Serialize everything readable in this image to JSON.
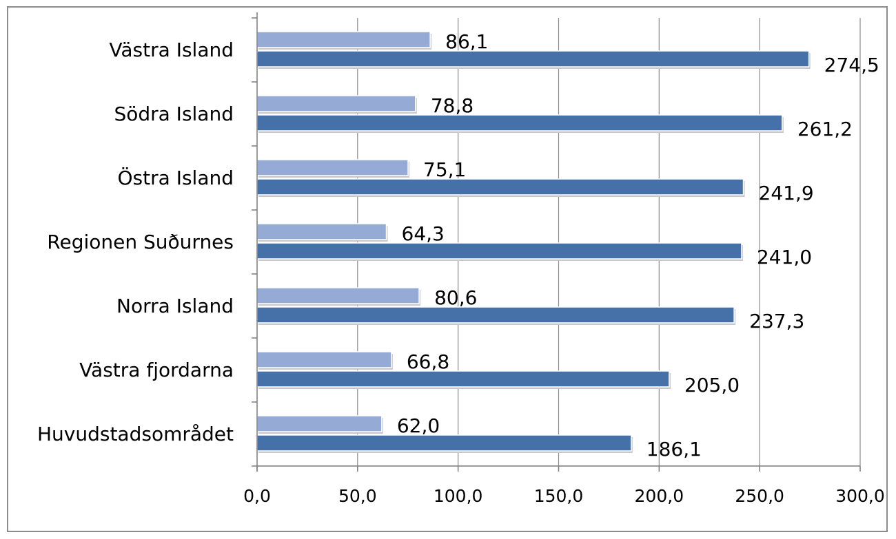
{
  "chart_data": {
    "type": "bar",
    "orientation": "horizontal",
    "categories": [
      "Västra Island",
      "Södra Island",
      "Östra Island",
      "Regionen Suðurnes",
      "Norra Island",
      "Västra fjordarna",
      "Huvudstadsområdet"
    ],
    "series": [
      {
        "color": "#95aad4",
        "values": [
          86.1,
          78.8,
          75.1,
          64.3,
          80.6,
          66.8,
          62.0
        ],
        "data_labels": [
          "86,1",
          "78,8",
          "75,1",
          "64,3",
          "80,6",
          "66,8",
          "62,0"
        ]
      },
      {
        "color": "#4571a8",
        "values": [
          274.5,
          261.2,
          241.9,
          241.0,
          237.3,
          205.0,
          186.1
        ],
        "data_labels": [
          "274,5",
          "261,2",
          "241,9",
          "241,0",
          "237,3",
          "205,0",
          "186,1"
        ]
      }
    ],
    "xlim": [
      0,
      300
    ],
    "x_ticks": [
      0,
      50,
      100,
      150,
      200,
      250,
      300
    ],
    "x_tick_labels": [
      "0,0",
      "50,0",
      "100,0",
      "150,0",
      "200,0",
      "250,0",
      "300,0"
    ],
    "grid": "vertical",
    "legend": "none",
    "title": "",
    "xlabel": "",
    "ylabel": ""
  }
}
